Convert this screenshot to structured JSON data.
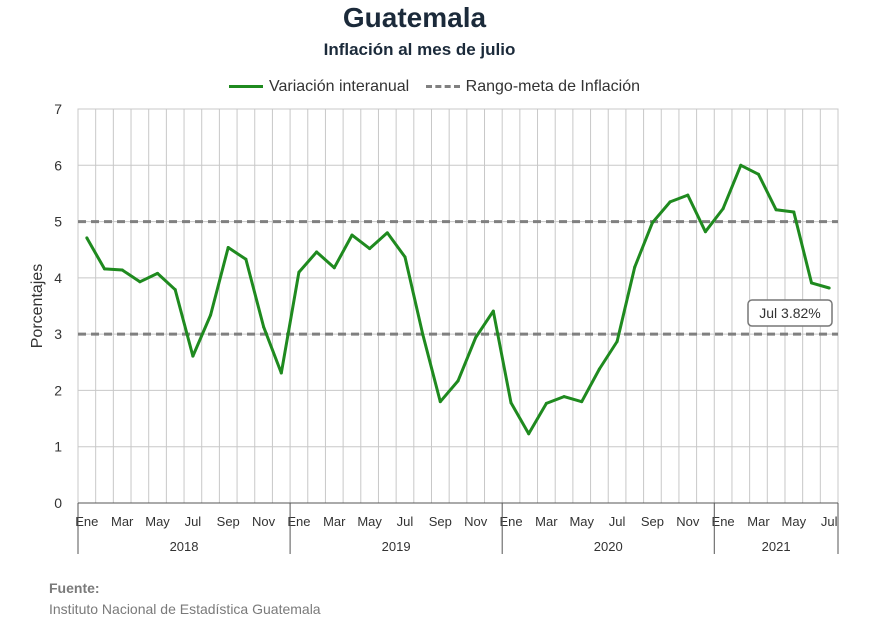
{
  "title": "Guatemala",
  "subtitle": "Inflación al mes de julio",
  "source_label": "Fuente:",
  "source_text": "Instituto Nacional de Estadística Guatemala",
  "colors": {
    "series": "#1f8a1f",
    "target": "#808080",
    "grid": "#c8c8c8",
    "axis": "#555555"
  },
  "chart_data": {
    "type": "line",
    "title": "Guatemala",
    "subtitle": "Inflación al mes de julio",
    "ylabel": "Porcentajes",
    "xlabel": "",
    "ylim": [
      0,
      7
    ],
    "yticks": [
      0,
      1,
      2,
      3,
      4,
      5,
      6,
      7
    ],
    "grid": true,
    "legend_position": "top-center",
    "x": [
      "2018-01",
      "2018-02",
      "2018-03",
      "2018-04",
      "2018-05",
      "2018-06",
      "2018-07",
      "2018-08",
      "2018-09",
      "2018-10",
      "2018-11",
      "2018-12",
      "2019-01",
      "2019-02",
      "2019-03",
      "2019-04",
      "2019-05",
      "2019-06",
      "2019-07",
      "2019-08",
      "2019-09",
      "2019-10",
      "2019-11",
      "2019-12",
      "2020-01",
      "2020-02",
      "2020-03",
      "2020-04",
      "2020-05",
      "2020-06",
      "2020-07",
      "2020-08",
      "2020-09",
      "2020-10",
      "2020-11",
      "2020-12",
      "2021-01",
      "2021-02",
      "2021-03",
      "2021-04",
      "2021-05",
      "2021-06",
      "2021-07"
    ],
    "tick_labels": [
      "Ene",
      "",
      "Mar",
      "",
      "May",
      "",
      "Jul",
      "",
      "Sep",
      "",
      "Nov",
      "",
      "Ene",
      "",
      "Mar",
      "",
      "May",
      "",
      "Jul",
      "",
      "Sep",
      "",
      "Nov",
      "",
      "Ene",
      "",
      "Mar",
      "",
      "May",
      "",
      "Jul",
      "",
      "Sep",
      "",
      "Nov",
      "",
      "Ene",
      "",
      "Mar",
      "",
      "May",
      "",
      "Jul"
    ],
    "years": [
      {
        "label": "2018",
        "start": 0,
        "count": 12
      },
      {
        "label": "2019",
        "start": 12,
        "count": 12
      },
      {
        "label": "2020",
        "start": 24,
        "count": 12
      },
      {
        "label": "2021",
        "start": 36,
        "count": 7
      }
    ],
    "series": [
      {
        "name": "Variación interanual",
        "values": [
          4.71,
          4.16,
          4.14,
          3.93,
          4.08,
          3.79,
          2.61,
          3.34,
          4.54,
          4.33,
          3.13,
          2.31,
          4.1,
          4.46,
          4.18,
          4.76,
          4.52,
          4.8,
          4.37,
          3.0,
          1.8,
          2.17,
          2.94,
          3.41,
          1.78,
          1.23,
          1.77,
          1.89,
          1.8,
          2.38,
          2.87,
          4.19,
          4.98,
          5.35,
          5.47,
          4.82,
          5.23,
          6.0,
          5.84,
          5.21,
          5.17,
          3.91,
          3.82
        ]
      }
    ],
    "target_range": {
      "name": "Rango-meta de Inflación",
      "low": 3,
      "high": 5
    },
    "annotation": "Jul 3.82%"
  }
}
